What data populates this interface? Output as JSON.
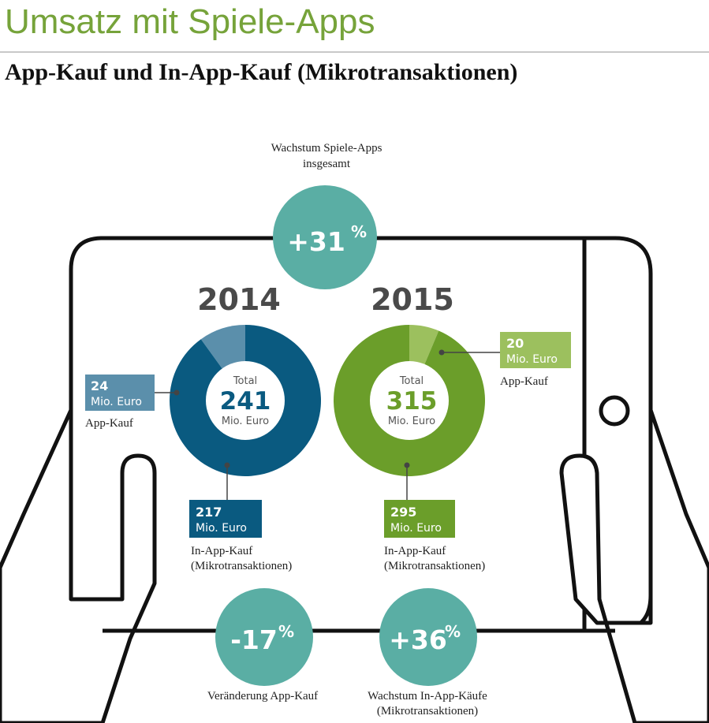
{
  "header": {
    "title": "Umsatz mit Spiele-Apps",
    "subtitle": "App-Kauf und In-App-Kauf (Mikrotransaktionen)"
  },
  "growth": {
    "total": {
      "value": "+31",
      "unit": "%",
      "label_lines": [
        "Wachstum Spiele-Apps",
        "insgesamt"
      ]
    },
    "app_kauf": {
      "value": "-17",
      "unit": "%",
      "label_lines": [
        "Veränderung App-Kauf"
      ]
    },
    "in_app": {
      "value": "+36",
      "unit": "%",
      "label_lines": [
        "Wachstum In-App-Käufe",
        "(Mikrotransaktionen)"
      ]
    }
  },
  "colors": {
    "title_green": "#76a33a",
    "teal_bubble": "#5aaea4",
    "blue_dark": "#0a5a80",
    "blue_light": "#5b8fab",
    "green_dark": "#6b9e2a",
    "green_light": "#9cc05e"
  },
  "chart_data": [
    {
      "type": "pie",
      "variant": "donut",
      "title": "2014",
      "total_label": "Total",
      "total": 241,
      "total_display": "241",
      "unit": "Mio. Euro",
      "slices": [
        {
          "name": "App-Kauf",
          "value": 24,
          "value_display": "24",
          "unit": "Mio. Euro",
          "label_lines": [
            "App-Kauf"
          ],
          "color": "#5b8fab"
        },
        {
          "name": "In-App-Kauf (Mikrotransaktionen)",
          "value": 217,
          "value_display": "217",
          "unit": "Mio. Euro",
          "label_lines": [
            "In-App-Kauf",
            "(Mikrotransaktionen)"
          ],
          "color": "#0a5a80"
        }
      ]
    },
    {
      "type": "pie",
      "variant": "donut",
      "title": "2015",
      "total_label": "Total",
      "total": 315,
      "total_display": "315",
      "unit": "Mio. Euro",
      "slices": [
        {
          "name": "App-Kauf",
          "value": 20,
          "value_display": "20",
          "unit": "Mio. Euro",
          "label_lines": [
            "App-Kauf"
          ],
          "color": "#9cc05e"
        },
        {
          "name": "In-App-Kauf (Mikrotransaktionen)",
          "value": 295,
          "value_display": "295",
          "unit": "Mio. Euro",
          "label_lines": [
            "In-App-Kauf",
            "(Mikrotransaktionen)"
          ],
          "color": "#6b9e2a"
        }
      ]
    }
  ]
}
